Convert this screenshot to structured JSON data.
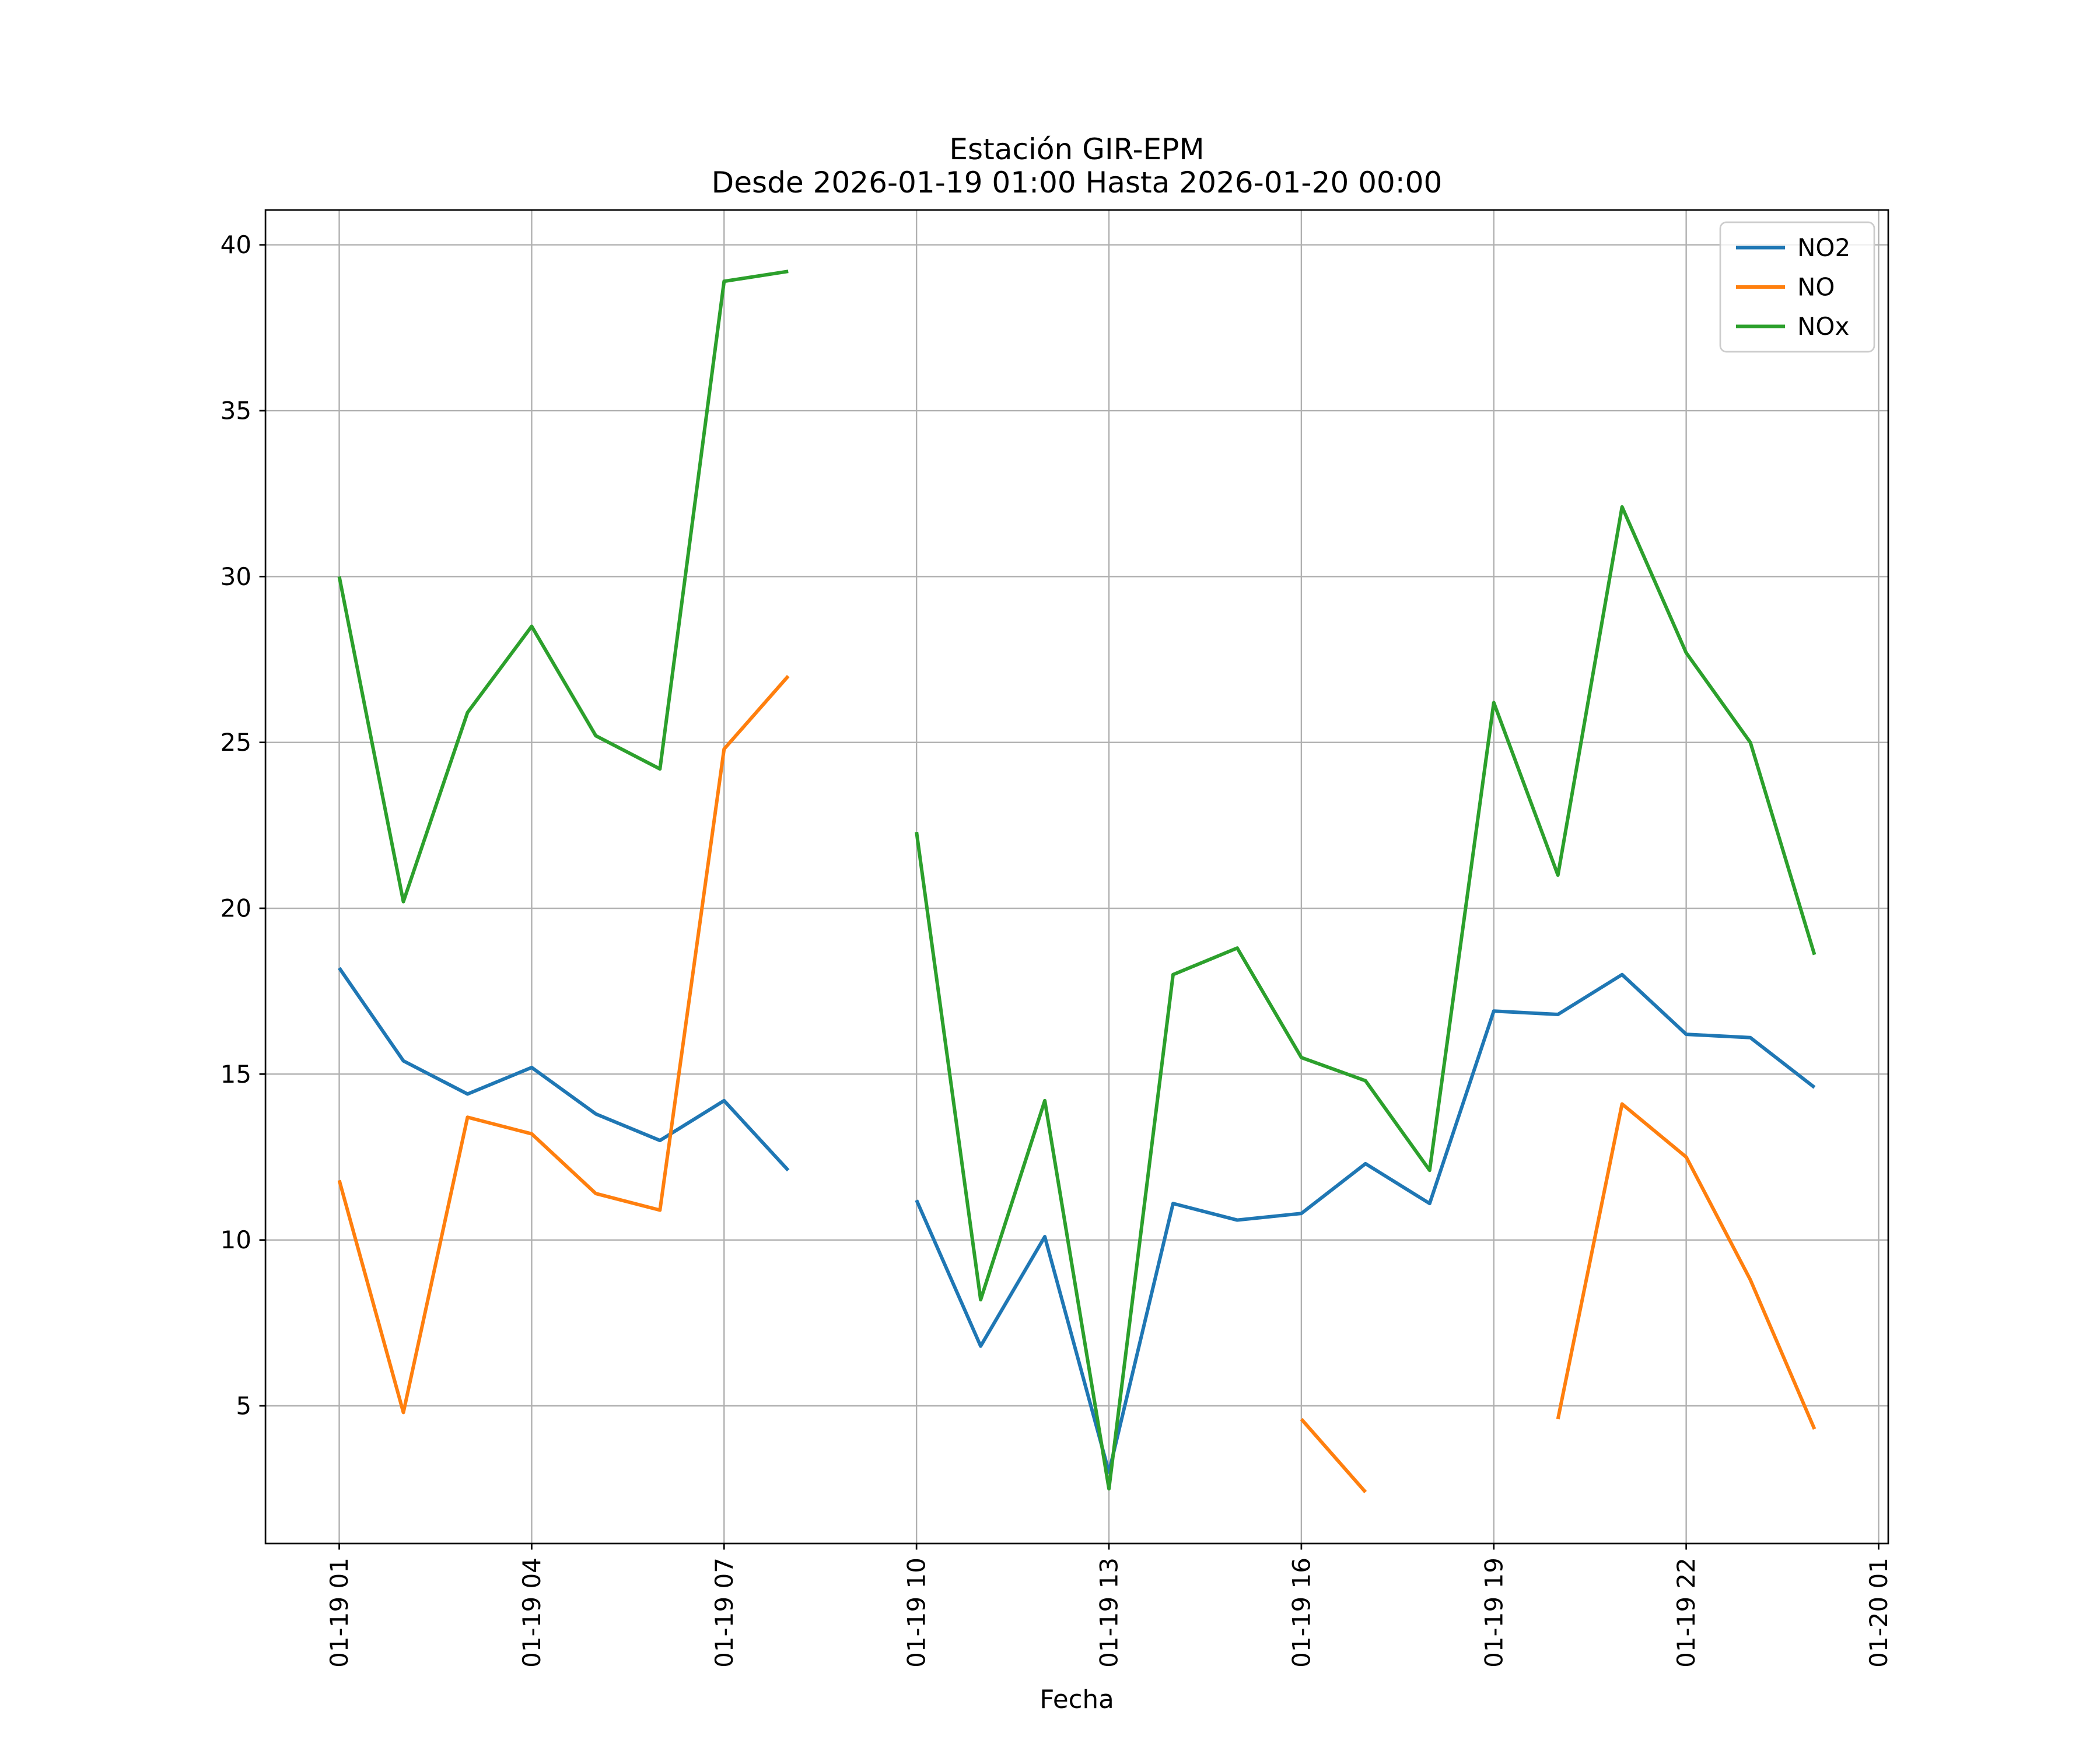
{
  "figure": {
    "title_line1": "Estación GIR-EPM",
    "title_line2": "Desde 2026-01-19 01:00 Hasta 2026-01-20 00:00",
    "xlabel": "Fecha"
  },
  "legend": {
    "position": "top-right",
    "entries": [
      {
        "label": "NO2",
        "color": "#1f77b4"
      },
      {
        "label": "NO",
        "color": "#ff7f0e"
      },
      {
        "label": "NOx",
        "color": "#2ca02c"
      }
    ]
  },
  "chart_data": {
    "type": "line",
    "title": "Estación GIR-EPM — Desde 2026-01-19 01:00 Hasta 2026-01-20 00:00",
    "xlabel": "Fecha",
    "ylabel": "",
    "grid": true,
    "grid_color": "#b0b0b0",
    "spine_color": "#000000",
    "x_unit": "hours since 2026-01-19 00:00",
    "x": [
      1,
      2,
      3,
      4,
      5,
      6,
      7,
      8,
      9,
      10,
      11,
      12,
      13,
      14,
      15,
      16,
      17,
      18,
      19,
      20,
      21,
      22,
      23,
      24
    ],
    "series": [
      {
        "name": "NO2",
        "color": "#1f77b4",
        "values": [
          18.2,
          15.4,
          14.4,
          15.2,
          13.8,
          13.0,
          14.2,
          12.1,
          null,
          11.2,
          6.8,
          10.1,
          3.0,
          11.1,
          10.6,
          10.8,
          12.3,
          11.1,
          16.9,
          16.8,
          18.0,
          16.2,
          16.1,
          14.6
        ]
      },
      {
        "name": "NO",
        "color": "#ff7f0e",
        "values": [
          11.8,
          4.8,
          13.7,
          13.2,
          11.4,
          10.9,
          24.8,
          27.0,
          null,
          null,
          null,
          null,
          null,
          null,
          null,
          4.6,
          2.4,
          null,
          null,
          4.6,
          14.1,
          12.5,
          8.8,
          4.3
        ]
      },
      {
        "name": "NOx",
        "color": "#2ca02c",
        "values": [
          30.0,
          20.2,
          25.9,
          28.5,
          25.2,
          24.2,
          38.9,
          39.2,
          null,
          22.3,
          8.2,
          14.2,
          2.5,
          18.0,
          18.8,
          15.5,
          14.8,
          12.1,
          26.2,
          21.0,
          32.1,
          27.7,
          25.0,
          18.6
        ]
      }
    ],
    "xlim": [
      -0.15,
      25.15
    ],
    "ylim": [
      0.85,
      41.05
    ],
    "x_tick_positions": [
      1,
      4,
      7,
      10,
      13,
      16,
      19,
      22,
      25
    ],
    "x_tick_labels": [
      "01-19 01",
      "01-19 04",
      "01-19 07",
      "01-19 10",
      "01-19 13",
      "01-19 16",
      "01-19 19",
      "01-19 22",
      "01-20 01"
    ],
    "y_ticks": [
      5,
      10,
      15,
      20,
      25,
      30,
      35,
      40
    ]
  }
}
